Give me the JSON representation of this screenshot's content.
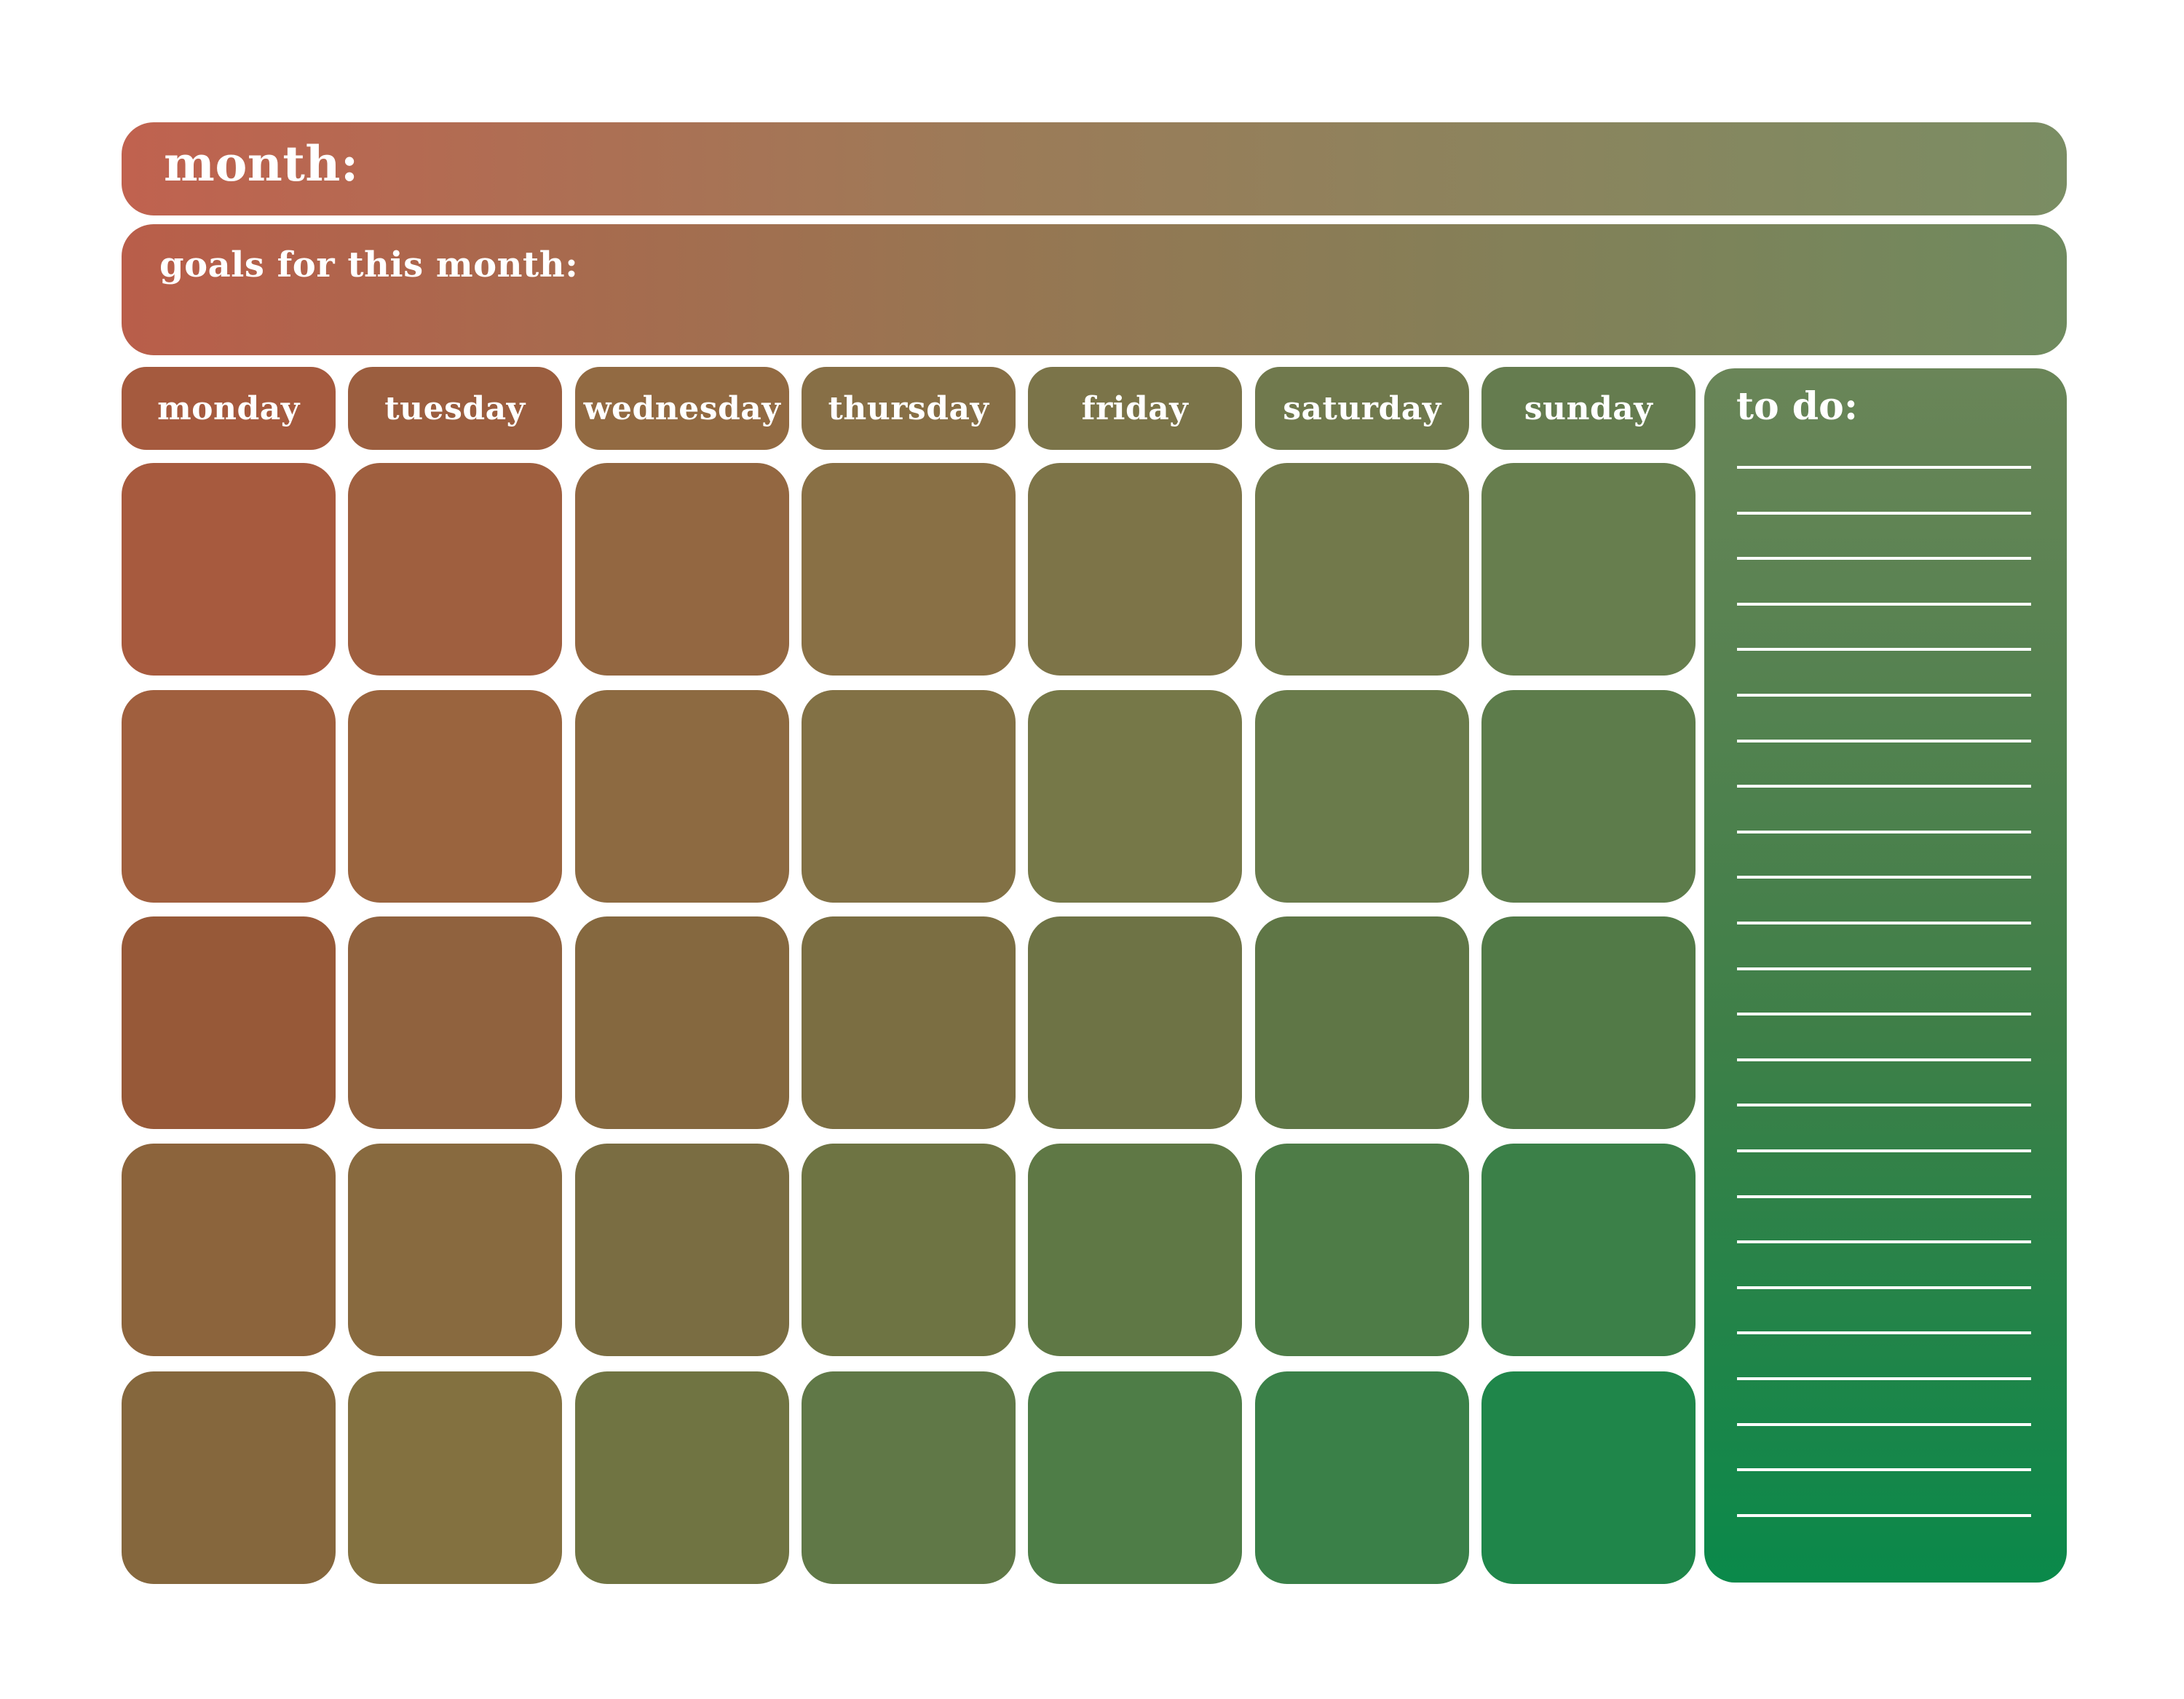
{
  "header": {
    "month_label": "month:",
    "goals_label": "goals for this month:"
  },
  "days": [
    {
      "label": "monday",
      "color": "#a55a3e"
    },
    {
      "label": "tuesday",
      "color": "#9b5e3f"
    },
    {
      "label": "wednesday",
      "color": "#926a42"
    },
    {
      "label": "thursday",
      "color": "#876f46"
    },
    {
      "label": "friday",
      "color": "#7b7449"
    },
    {
      "label": "saturday",
      "color": "#70794d"
    },
    {
      "label": "sunday",
      "color": "#657c4f"
    }
  ],
  "grid": {
    "rows": 5,
    "columns": 7,
    "cell_colors": [
      [
        "#a75a3e",
        "#9f5f3f",
        "#936741",
        "#897045",
        "#7d7448",
        "#72794b",
        "#677e4e"
      ],
      [
        "#a05f3e",
        "#9a643e",
        "#8d6a41",
        "#827145",
        "#767848",
        "#6a7b4b",
        "#5d7c4b"
      ],
      [
        "#975938",
        "#90623e",
        "#85683f",
        "#7b6e42",
        "#6e7345",
        "#5f7646",
        "#527a47"
      ],
      [
        "#8c643c",
        "#886a3f",
        "#7a6d42",
        "#6e7443",
        "#5f7845",
        "#4e7c47",
        "#3b8048"
      ],
      [
        "#85673d",
        "#837140",
        "#707442",
        "#607847",
        "#4e7d47",
        "#3a8048",
        "#1f864a"
      ]
    ]
  },
  "todo": {
    "label": "to do:",
    "line_count": 24
  }
}
